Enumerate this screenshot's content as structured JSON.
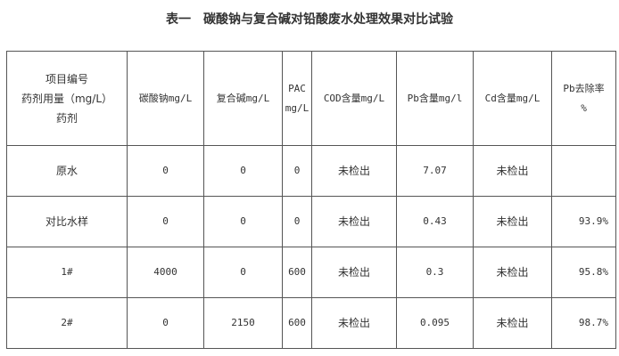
{
  "title": {
    "prefix": "表一",
    "text": "碳酸钠与复合碱对铅酸废水处理效果对比试验"
  },
  "table": {
    "header": {
      "corner": [
        "项目编号",
        "药剂用量（mg/L）",
        "药剂"
      ],
      "columns": [
        [
          "碳酸钠mg/L"
        ],
        [
          "复合碱mg/L"
        ],
        [
          "PAC",
          "mg/L"
        ],
        [
          "COD含量mg/L"
        ],
        [
          "Pb含量mg/l"
        ],
        [
          "Cd含量mg/L"
        ],
        [
          "Pb去除率",
          "%"
        ]
      ]
    },
    "rows": [
      [
        "原水",
        "0",
        "0",
        "0",
        "未检出",
        "7.07",
        "未检出",
        ""
      ],
      [
        "对比水样",
        "0",
        "0",
        "0",
        "未检出",
        "0.43",
        "未检出",
        "93.9%"
      ],
      [
        "1#",
        "4000",
        "0",
        "600",
        "未检出",
        "0.3",
        "未检出",
        "95.8%"
      ],
      [
        "2#",
        "0",
        "2150",
        "600",
        "未检出",
        "0.095",
        "未检出",
        "98.7%"
      ]
    ]
  }
}
